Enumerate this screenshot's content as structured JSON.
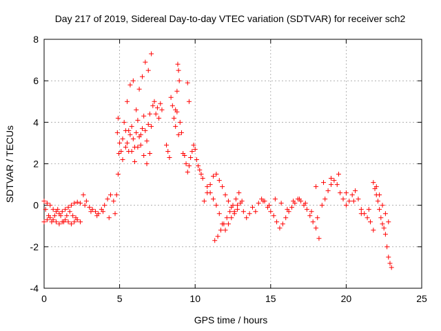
{
  "chart_data": {
    "type": "scatter",
    "title": "Day 217 of 2019, Sidereal Day-to-day VTEC variation (SDTVAR) for receiver sch2",
    "xlabel": "GPS time / hours",
    "ylabel": "SDTVAR / TECUs",
    "xlim": [
      0,
      25
    ],
    "ylim": [
      -4,
      8
    ],
    "xticks": [
      0,
      5,
      10,
      15,
      20,
      25
    ],
    "yticks": [
      -4,
      -2,
      0,
      2,
      4,
      6,
      8
    ],
    "xtick_labels": [
      "0",
      "5",
      "10",
      "15",
      "20",
      "25"
    ],
    "ytick_labels": [
      "-4",
      "-2",
      "0",
      "2",
      "4",
      "6",
      "8"
    ],
    "grid": true,
    "marker": "+",
    "marker_color": "#ff0000",
    "series": [
      {
        "name": "SDTVAR",
        "x": [
          0.0,
          0.2,
          0.4,
          0.6,
          0.8,
          1.0,
          1.2,
          1.4,
          1.6,
          1.8,
          2.0,
          2.2,
          2.4,
          0.0,
          0.2,
          0.4,
          0.6,
          0.8,
          1.0,
          1.2,
          1.4,
          1.6,
          1.8,
          2.0,
          2.2,
          2.4,
          0.1,
          0.3,
          0.5,
          0.7,
          0.9,
          1.1,
          1.3,
          1.5,
          1.7,
          1.9,
          2.1,
          2.6,
          2.8,
          3.0,
          3.2,
          3.4,
          3.6,
          3.8,
          4.0,
          4.2,
          4.4,
          4.6,
          2.7,
          3.1,
          3.5,
          3.9,
          4.3,
          4.7,
          4.8,
          4.9,
          4.95,
          4.85,
          4.9,
          5.0,
          5.1,
          5.2,
          5.3,
          5.4,
          5.5,
          5.6,
          5.7,
          5.8,
          5.9,
          6.0,
          6.1,
          6.2,
          6.3,
          6.4,
          6.5,
          6.6,
          6.7,
          6.8,
          6.9,
          7.0,
          7.1,
          7.2,
          7.3,
          7.4,
          7.5,
          7.6,
          7.7,
          7.8,
          5.2,
          5.4,
          5.6,
          5.8,
          6.0,
          6.2,
          6.4,
          6.6,
          6.8,
          7.0,
          5.5,
          5.7,
          5.9,
          6.1,
          6.3,
          6.5,
          6.7,
          6.9,
          7.1,
          8.1,
          8.2,
          8.3,
          8.4,
          8.5,
          8.6,
          8.7,
          8.8,
          8.9,
          9.0,
          9.1,
          9.2,
          8.85,
          8.9,
          8.95,
          8.8,
          8.7,
          9.3,
          9.4,
          9.5,
          9.6,
          9.7,
          9.8,
          9.9,
          10.0,
          10.1,
          10.2,
          10.3,
          10.4,
          10.5,
          9.5,
          9.6,
          10.6,
          10.8,
          11.0,
          11.2,
          11.4,
          11.6,
          11.8,
          12.0,
          12.2,
          12.4,
          12.6,
          12.8,
          13.0,
          13.2,
          13.4,
          13.6,
          13.8,
          14.0,
          10.8,
          11.0,
          11.2,
          11.4,
          11.6,
          11.8,
          12.0,
          12.2,
          12.4,
          12.6,
          12.8,
          11.3,
          11.5,
          11.7,
          11.9,
          12.1,
          12.3,
          12.5,
          12.7,
          12.9,
          13.1,
          14.2,
          14.4,
          14.6,
          14.8,
          15.0,
          15.2,
          15.4,
          15.6,
          15.8,
          16.0,
          16.2,
          16.4,
          16.6,
          16.8,
          17.0,
          17.2,
          17.4,
          17.6,
          17.8,
          18.0,
          18.2,
          14.5,
          14.9,
          15.3,
          15.7,
          16.1,
          16.5,
          16.9,
          17.3,
          17.7,
          18.1,
          18.4,
          18.6,
          18.8,
          19.0,
          19.2,
          19.4,
          19.6,
          19.8,
          20.0,
          20.2,
          20.4,
          20.6,
          20.8,
          21.0,
          21.2,
          21.4,
          21.6,
          21.8,
          18.0,
          18.5,
          19.0,
          19.5,
          20.0,
          20.5,
          21.0,
          21.5,
          21.8,
          21.9,
          22.0,
          22.1,
          22.2,
          22.3,
          22.4,
          22.5,
          22.6,
          22.7,
          22.8,
          22.9,
          23.0,
          22.0,
          22.2,
          22.4,
          22.6,
          22.8
        ],
        "y": [
          0.2,
          0.1,
          0.0,
          -0.2,
          -0.3,
          -0.4,
          -0.3,
          -0.2,
          -0.1,
          0.0,
          0.1,
          0.15,
          0.1,
          -0.8,
          -0.7,
          -0.6,
          -0.7,
          -0.8,
          -0.9,
          -0.8,
          -0.7,
          -0.8,
          -0.9,
          -0.8,
          -0.7,
          -0.8,
          -0.2,
          -0.5,
          -0.8,
          -0.5,
          -0.2,
          -0.5,
          -0.8,
          -0.5,
          -0.3,
          -0.5,
          -0.6,
          0.5,
          0.2,
          -0.1,
          -0.2,
          -0.3,
          -0.4,
          -0.2,
          0.0,
          0.3,
          0.5,
          0.2,
          0.0,
          -0.3,
          -0.5,
          -0.3,
          -0.6,
          -0.4,
          0.5,
          1.5,
          2.5,
          3.5,
          4.2,
          3.0,
          2.6,
          3.2,
          4.0,
          3.6,
          3.0,
          2.6,
          3.4,
          3.8,
          3.2,
          2.8,
          3.5,
          4.1,
          3.3,
          2.9,
          3.7,
          4.3,
          3.6,
          3.1,
          3.9,
          4.4,
          3.8,
          4.8,
          5.0,
          4.4,
          4.7,
          4.2,
          4.9,
          4.6,
          2.2,
          2.8,
          3.6,
          2.6,
          2.1,
          2.8,
          3.4,
          2.4,
          2.0,
          2.5,
          5.0,
          5.8,
          6.0,
          4.6,
          5.6,
          6.2,
          6.9,
          6.5,
          7.3,
          2.9,
          2.6,
          2.3,
          5.2,
          4.8,
          4.2,
          3.8,
          4.5,
          3.4,
          4.0,
          3.5,
          2.5,
          6.8,
          6.5,
          6.0,
          5.5,
          4.6,
          2.4,
          2.0,
          1.6,
          1.9,
          2.3,
          2.6,
          2.9,
          2.7,
          2.2,
          1.9,
          1.7,
          1.5,
          1.3,
          5.9,
          5.0,
          0.2,
          0.6,
          1.0,
          1.4,
          1.5,
          1.2,
          0.9,
          0.5,
          0.2,
          -0.1,
          -0.4,
          -0.2,
          0.1,
          -0.3,
          -0.6,
          -0.4,
          -0.1,
          -0.3,
          0.9,
          0.6,
          0.3,
          0.0,
          -0.4,
          -0.9,
          -1.2,
          -0.9,
          -0.6,
          -0.3,
          0.0,
          -1.7,
          -1.5,
          -1.2,
          -0.9,
          -0.6,
          -0.3,
          0.0,
          0.3,
          0.6,
          0.2,
          0.1,
          0.3,
          0.2,
          -0.1,
          -0.3,
          -0.5,
          -0.8,
          -1.1,
          -0.9,
          -0.6,
          -0.3,
          -0.1,
          0.1,
          0.3,
          0.2,
          0.0,
          -0.2,
          -0.5,
          -0.8,
          -1.1,
          -1.6,
          0.2,
          0.0,
          0.3,
          0.1,
          -0.2,
          0.2,
          0.3,
          0.1,
          -0.3,
          -0.6,
          0.0,
          0.3,
          0.7,
          1.0,
          1.2,
          1.0,
          0.6,
          0.3,
          0.0,
          0.2,
          0.5,
          0.7,
          0.3,
          -0.2,
          -0.4,
          -0.6,
          -0.8,
          -1.2,
          0.9,
          1.1,
          1.3,
          1.5,
          0.6,
          0.2,
          -0.4,
          -0.2,
          1.1,
          0.8,
          0.5,
          0.2,
          -0.2,
          -0.6,
          -0.9,
          -1.1,
          -1.4,
          -2.0,
          -2.5,
          -2.8,
          -3.0,
          0.9,
          0.5,
          0.0,
          -0.4,
          -0.8
        ]
      }
    ]
  }
}
